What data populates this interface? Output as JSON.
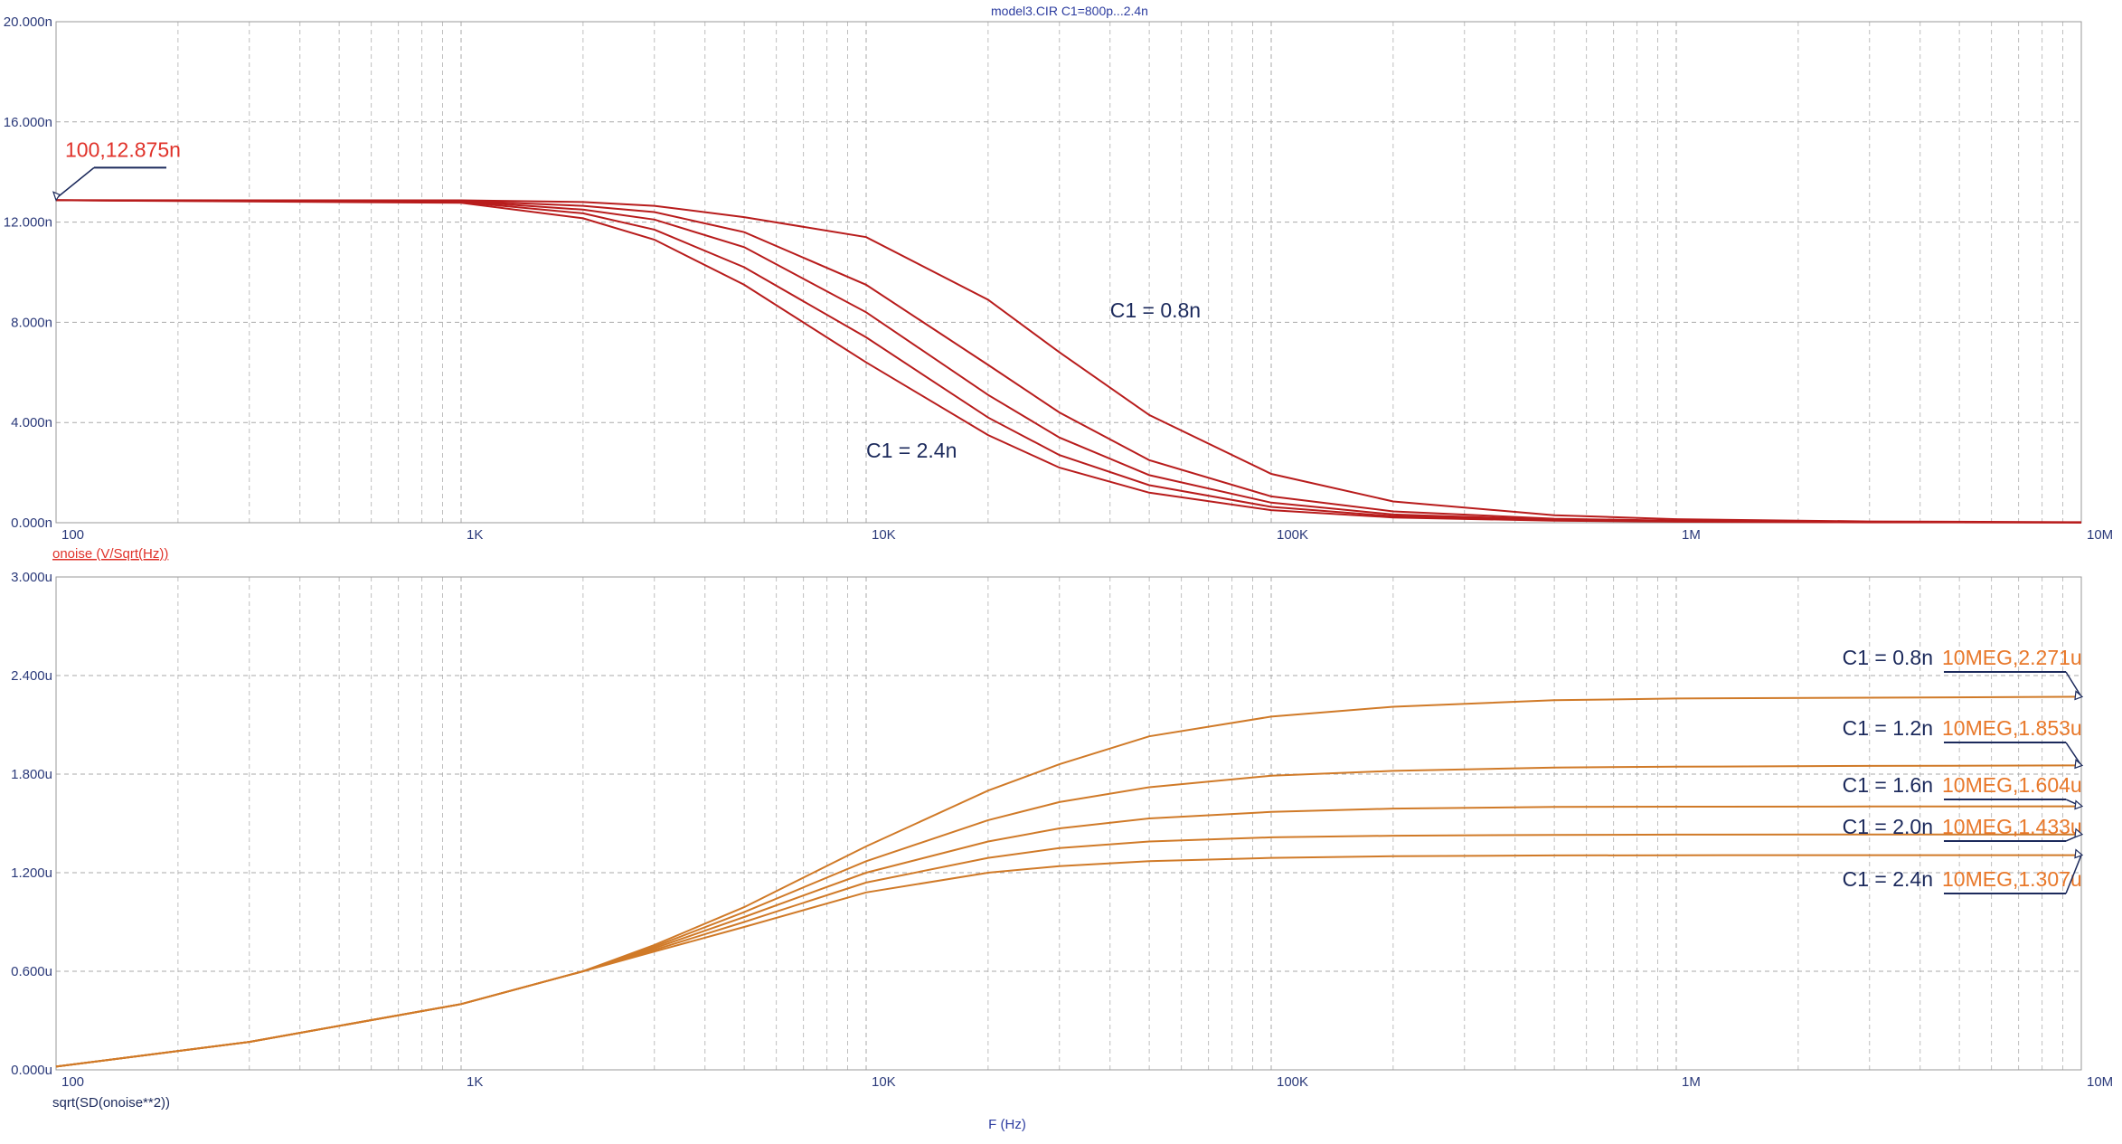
{
  "title": "model3.CIR C1=800p...2.4n",
  "xlabel": "F (Hz)",
  "colors": {
    "top_series": "#b81c1c",
    "bottom_series": "#d07a28",
    "title_text": "#2d3da0",
    "label_text": "#1c2a5c",
    "value_text": "#e0322a",
    "value_text_bottom": "#e8782a",
    "grid": "#a9a9a9",
    "axis_text": "#2b3a7a"
  },
  "chart_data": [
    {
      "type": "line",
      "x_scale": "log",
      "xlim": [
        100,
        10000000
      ],
      "ylim": [
        0,
        20
      ],
      "y_unit": "n",
      "x_ticks": [
        100,
        1000,
        10000,
        100000,
        1000000,
        10000000
      ],
      "x_tick_labels": [
        "100",
        "1K",
        "10K",
        "100K",
        "1M",
        "10M"
      ],
      "y_ticks": [
        0,
        4,
        8,
        12,
        16,
        20
      ],
      "y_tick_labels": [
        "0.000n",
        "4.000n",
        "8.000n",
        "12.000n",
        "16.000n",
        "20.000n"
      ],
      "trace_label": "onoise (V/Sqrt(Hz))",
      "grid": true,
      "x": [
        100,
        1000,
        2000,
        3000,
        5000,
        10000,
        20000,
        30000,
        50000,
        100000,
        200000,
        500000,
        1000000,
        3000000,
        10000000
      ],
      "series": [
        {
          "values": [
            12.875,
            12.87,
            12.8,
            12.65,
            12.2,
            11.4,
            8.9,
            6.8,
            4.3,
            1.95,
            0.85,
            0.3,
            0.14,
            0.05,
            0.02
          ]
        },
        {
          "values": [
            12.875,
            12.85,
            12.65,
            12.4,
            11.6,
            9.5,
            6.3,
            4.4,
            2.5,
            1.05,
            0.45,
            0.16,
            0.08,
            0.03,
            0.01
          ]
        },
        {
          "values": [
            12.875,
            12.83,
            12.5,
            12.1,
            11.0,
            8.4,
            5.1,
            3.4,
            1.9,
            0.8,
            0.33,
            0.12,
            0.06,
            0.02,
            0.01
          ]
        },
        {
          "values": [
            12.875,
            12.8,
            12.35,
            11.7,
            10.2,
            7.4,
            4.2,
            2.7,
            1.5,
            0.63,
            0.26,
            0.1,
            0.05,
            0.02,
            0.01
          ]
        },
        {
          "values": [
            12.875,
            12.77,
            12.15,
            11.3,
            9.5,
            6.4,
            3.5,
            2.2,
            1.2,
            0.5,
            0.21,
            0.08,
            0.04,
            0.015,
            0.01
          ]
        }
      ],
      "annotations": [
        {
          "text": "C1 = 0.8n",
          "x": 40000,
          "y": 8.2
        },
        {
          "text": "C1 = 2.4n",
          "x": 10000,
          "y": 2.6
        }
      ],
      "markers": [
        {
          "text": "100,12.875n",
          "x": 100,
          "y": 12.875
        }
      ]
    },
    {
      "type": "line",
      "x_scale": "log",
      "xlim": [
        100,
        10000000
      ],
      "ylim": [
        0,
        3
      ],
      "y_unit": "u",
      "x_ticks": [
        100,
        1000,
        10000,
        100000,
        1000000,
        10000000
      ],
      "x_tick_labels": [
        "100",
        "1K",
        "10K",
        "100K",
        "1M",
        "10M"
      ],
      "y_ticks": [
        0,
        0.6,
        1.2,
        1.8,
        2.4,
        3.0
      ],
      "y_tick_labels": [
        "0.000u",
        "0.600u",
        "1.200u",
        "1.800u",
        "2.400u",
        "3.000u"
      ],
      "trace_label": "sqrt(SD(onoise**2))",
      "grid": true,
      "x": [
        100,
        300,
        1000,
        2000,
        3000,
        5000,
        10000,
        20000,
        30000,
        50000,
        100000,
        200000,
        500000,
        1000000,
        3000000,
        10000000
      ],
      "series": [
        {
          "name": "C1 = 0.8n",
          "values": [
            0.02,
            0.17,
            0.4,
            0.6,
            0.76,
            0.99,
            1.36,
            1.7,
            1.86,
            2.03,
            2.15,
            2.21,
            2.25,
            2.26,
            2.265,
            2.271
          ]
        },
        {
          "name": "C1 = 1.2n",
          "values": [
            0.02,
            0.17,
            0.4,
            0.6,
            0.75,
            0.96,
            1.27,
            1.52,
            1.63,
            1.72,
            1.79,
            1.82,
            1.84,
            1.845,
            1.85,
            1.853
          ]
        },
        {
          "name": "C1 = 1.6n",
          "values": [
            0.02,
            0.17,
            0.4,
            0.6,
            0.74,
            0.93,
            1.2,
            1.39,
            1.47,
            1.53,
            1.57,
            1.59,
            1.6,
            1.602,
            1.603,
            1.604
          ]
        },
        {
          "name": "C1 = 2.0n",
          "values": [
            0.02,
            0.17,
            0.4,
            0.6,
            0.73,
            0.9,
            1.14,
            1.29,
            1.35,
            1.39,
            1.415,
            1.425,
            1.43,
            1.432,
            1.433,
            1.433
          ]
        },
        {
          "name": "C1 = 2.4n",
          "values": [
            0.02,
            0.17,
            0.4,
            0.6,
            0.72,
            0.87,
            1.08,
            1.2,
            1.24,
            1.27,
            1.29,
            1.3,
            1.305,
            1.306,
            1.307,
            1.307
          ]
        }
      ],
      "end_labels": [
        {
          "name": "C1 = 0.8n",
          "value": "10MEG,2.271u"
        },
        {
          "name": "C1 = 1.2n",
          "value": "10MEG,1.853u"
        },
        {
          "name": "C1 = 1.6n",
          "value": "10MEG,1.604u"
        },
        {
          "name": "C1 = 2.0n",
          "value": "10MEG,1.433u"
        },
        {
          "name": "C1 = 2.4n",
          "value": "10MEG,1.307u"
        }
      ]
    }
  ]
}
